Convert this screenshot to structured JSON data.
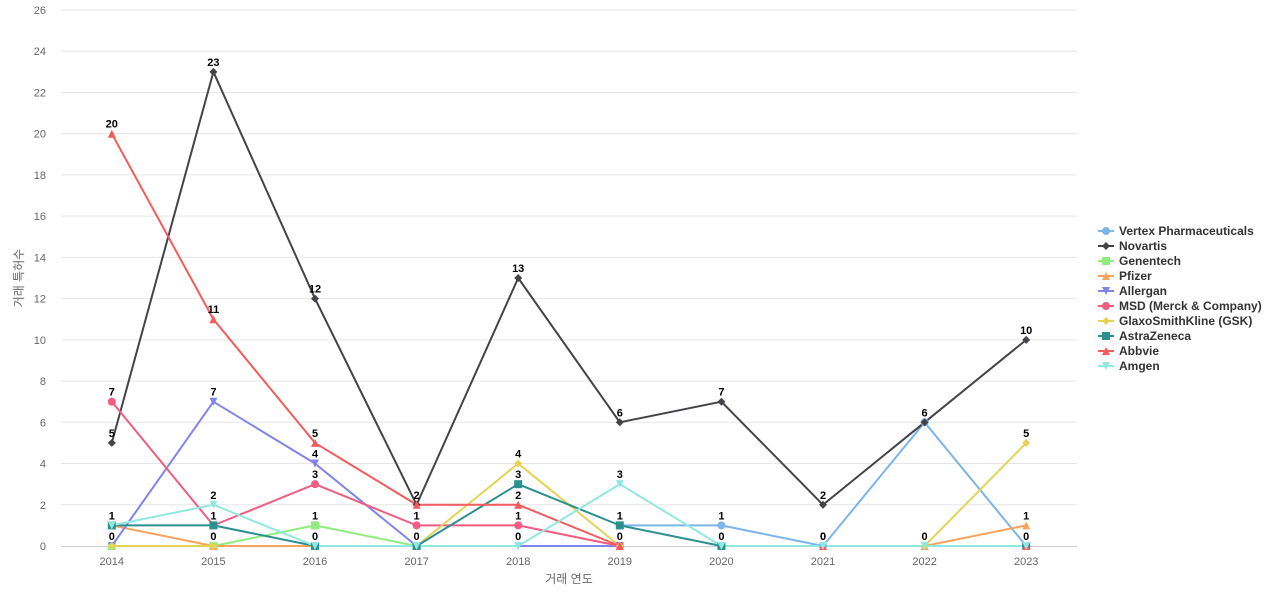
{
  "chart_data": {
    "type": "line",
    "title": "",
    "xlabel": "거래 연도",
    "ylabel": "거래 특허수",
    "categories": [
      "2014",
      "2015",
      "2016",
      "2017",
      "2018",
      "2019",
      "2020",
      "2021",
      "2022",
      "2023"
    ],
    "ylim": [
      0,
      26
    ],
    "yticks": [
      0,
      2,
      4,
      6,
      8,
      10,
      12,
      14,
      16,
      18,
      20,
      22,
      24,
      26
    ],
    "grid": true,
    "legend_position": "right",
    "series": [
      {
        "name": "Vertex Pharmaceuticals",
        "color": "#7cb5ec",
        "marker": "circle",
        "values": [
          null,
          null,
          null,
          null,
          null,
          1,
          1,
          0,
          6,
          0
        ],
        "labels": [
          null,
          null,
          null,
          null,
          null,
          null,
          1,
          0,
          6,
          null
        ]
      },
      {
        "name": "Novartis",
        "color": "#434348",
        "marker": "diamond",
        "values": [
          5,
          23,
          12,
          2,
          13,
          6,
          7,
          2,
          6,
          10
        ],
        "labels": [
          5,
          23,
          12,
          2,
          13,
          6,
          7,
          2,
          null,
          10
        ]
      },
      {
        "name": "Genentech",
        "color": "#90ed7d",
        "marker": "square",
        "values": [
          0,
          0,
          1,
          0,
          null,
          null,
          null,
          null,
          null,
          null
        ],
        "labels": [
          null,
          null,
          1,
          null,
          null,
          null,
          null,
          null,
          null,
          null
        ]
      },
      {
        "name": "Pfizer",
        "color": "#f7a35c",
        "marker": "triangle",
        "values": [
          1,
          0,
          0,
          0,
          null,
          null,
          null,
          null,
          0,
          1
        ],
        "labels": [
          null,
          0,
          null,
          null,
          null,
          null,
          null,
          null,
          0,
          1
        ]
      },
      {
        "name": "Allergan",
        "color": "#8085e9",
        "marker": "triangle-down",
        "values": [
          0,
          7,
          4,
          0,
          0,
          0,
          null,
          null,
          null,
          null
        ],
        "labels": [
          null,
          7,
          4,
          null,
          0,
          null,
          null,
          null,
          null,
          null
        ]
      },
      {
        "name": "MSD (Merck & Company)",
        "color": "#f15c80",
        "marker": "circle",
        "values": [
          7,
          1,
          3,
          1,
          1,
          0,
          null,
          null,
          null,
          null
        ],
        "labels": [
          7,
          null,
          3,
          1,
          1,
          null,
          null,
          null,
          null,
          null
        ]
      },
      {
        "name": "GlaxoSmithKline (GSK)",
        "color": "#e4d354",
        "marker": "diamond",
        "values": [
          0,
          0,
          null,
          0,
          4,
          0,
          null,
          null,
          0,
          5
        ],
        "labels": [
          0,
          null,
          null,
          null,
          4,
          null,
          null,
          null,
          null,
          5
        ]
      },
      {
        "name": "AstraZeneca",
        "color": "#2b908f",
        "marker": "square",
        "values": [
          1,
          1,
          0,
          0,
          3,
          1,
          0,
          null,
          null,
          0
        ],
        "labels": [
          1,
          1,
          null,
          0,
          3,
          1,
          0,
          null,
          null,
          0
        ]
      },
      {
        "name": "Abbvie",
        "color": "#f45b5b",
        "marker": "triangle",
        "values": [
          20,
          11,
          5,
          2,
          2,
          0,
          null,
          0,
          null,
          0
        ],
        "labels": [
          20,
          11,
          5,
          null,
          2,
          0,
          null,
          0,
          null,
          null
        ]
      },
      {
        "name": "Amgen",
        "color": "#91e8e1",
        "marker": "triangle-down",
        "values": [
          1,
          2,
          0,
          0,
          0,
          3,
          0,
          0,
          0,
          0
        ],
        "labels": [
          null,
          2,
          0,
          null,
          null,
          3,
          null,
          null,
          null,
          null
        ]
      }
    ]
  }
}
